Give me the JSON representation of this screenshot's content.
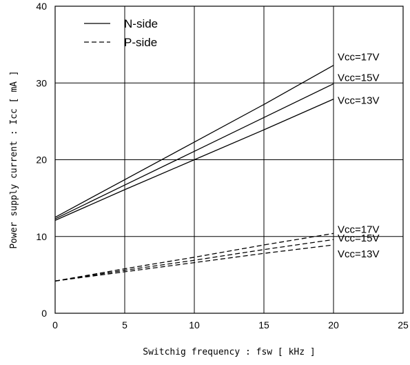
{
  "chart_data": {
    "type": "line",
    "xlabel": "Switchig frequency  :  fsw [ kHz ]",
    "ylabel": "Power supply current  :  Icc [ mA ]",
    "xlim": [
      0,
      25
    ],
    "ylim": [
      0,
      40
    ],
    "xticks": [
      "0",
      "5",
      "10",
      "15",
      "20",
      "25"
    ],
    "yticks": [
      "0",
      "10",
      "20",
      "30",
      "40"
    ],
    "grid": true,
    "legend": {
      "placement": "top-left",
      "entries": [
        {
          "label": "N-side",
          "style": "solid"
        },
        {
          "label": "P-side",
          "style": "dashed"
        }
      ]
    },
    "series": [
      {
        "name": "Vcc=17V",
        "group": "N-side",
        "style": "solid",
        "x": [
          0,
          5,
          10,
          15,
          20
        ],
        "y": [
          12.5,
          17.4,
          22.3,
          27.2,
          32.3
        ]
      },
      {
        "name": "Vcc=15V",
        "group": "N-side",
        "style": "solid",
        "x": [
          0,
          5,
          10,
          15,
          20
        ],
        "y": [
          12.3,
          16.7,
          21.1,
          25.5,
          29.9
        ]
      },
      {
        "name": "Vcc=13V",
        "group": "N-side",
        "style": "solid",
        "x": [
          0,
          5,
          10,
          15,
          20
        ],
        "y": [
          12.1,
          16.1,
          20.0,
          23.9,
          27.9
        ]
      },
      {
        "name": "Vcc=17V",
        "group": "P-side",
        "style": "dashed",
        "x": [
          0,
          5,
          10,
          15,
          20
        ],
        "y": [
          4.2,
          5.8,
          7.3,
          8.9,
          10.4
        ]
      },
      {
        "name": "Vcc=15V",
        "group": "P-side",
        "style": "dashed",
        "x": [
          0,
          5,
          10,
          15,
          20
        ],
        "y": [
          4.2,
          5.6,
          6.9,
          8.3,
          9.6
        ]
      },
      {
        "name": "Vcc=13V",
        "group": "P-side",
        "style": "dashed",
        "x": [
          0,
          5,
          10,
          15,
          20
        ],
        "y": [
          4.2,
          5.4,
          6.6,
          7.8,
          8.9
        ]
      }
    ]
  }
}
